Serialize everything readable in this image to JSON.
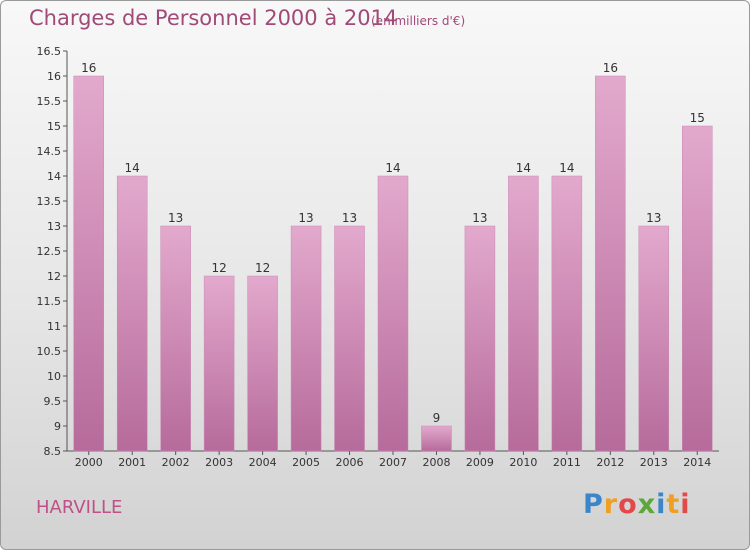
{
  "header": {
    "title": "Charges de Personnel 2000 à 2014",
    "subtitle": "(en milliers d'€)"
  },
  "commune": "HARVILLE",
  "logo": {
    "letters": [
      "P",
      "r",
      "o",
      "x",
      "i",
      "t",
      "i"
    ],
    "colors": [
      "#3a86c8",
      "#f0a020",
      "#e24a4a",
      "#5aa83a",
      "#3a86c8",
      "#f0a020",
      "#e24a4a"
    ]
  },
  "colors": {
    "bar_top": "#e3a9cd",
    "bar_bottom": "#b66b9b",
    "text_accent": "#a04a78"
  },
  "chart_data": {
    "type": "bar",
    "categories": [
      "2000",
      "2001",
      "2002",
      "2003",
      "2004",
      "2005",
      "2006",
      "2007",
      "2008",
      "2009",
      "2010",
      "2011",
      "2012",
      "2013",
      "2014"
    ],
    "values": [
      16,
      14,
      13,
      12,
      12,
      13,
      13,
      14,
      9,
      13,
      14,
      14,
      16,
      13,
      15
    ],
    "labels": [
      "16",
      "14",
      "13",
      "12",
      "12",
      "13",
      "13",
      "14",
      "9",
      "13",
      "14",
      "14",
      "16",
      "13",
      "15"
    ],
    "ylim": [
      8.5,
      16.5
    ],
    "yticks": [
      "8.5",
      "9",
      "9.5",
      "10",
      "10.5",
      "11",
      "11.5",
      "12",
      "12.5",
      "13",
      "13.5",
      "14",
      "14.5",
      "15",
      "15.5",
      "16",
      "16.5"
    ],
    "grid": false
  }
}
